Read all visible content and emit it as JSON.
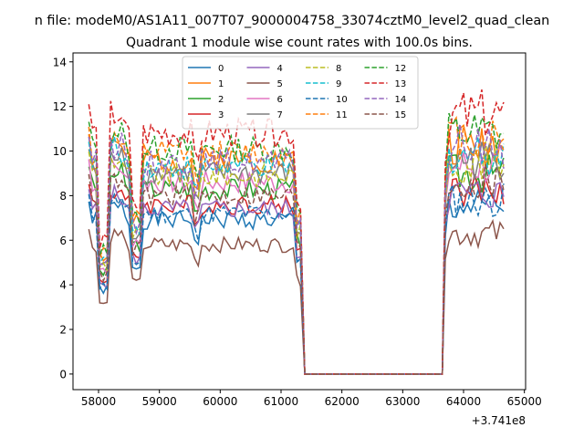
{
  "chart_data": {
    "type": "line",
    "suptitle": "n file: modeM0/AS1A11_007T07_9000004758_33074cztM0_level2_quad_clean",
    "title": "Quadrant 1 module wise count rates with 100.0s bins.",
    "xlabel": "",
    "ylabel": "",
    "x_offset_label": "+3.741e8",
    "xlim": [
      57580,
      65020
    ],
    "ylim": [
      -0.7,
      14.4
    ],
    "x_ticks": [
      58000,
      59000,
      60000,
      61000,
      62000,
      63000,
      64000,
      65000
    ],
    "x_tick_labels": [
      "58000",
      "59000",
      "60000",
      "61000",
      "62000",
      "63000",
      "64000",
      "65000"
    ],
    "y_ticks": [
      0,
      2,
      4,
      6,
      8,
      10,
      12,
      14
    ],
    "y_tick_labels": [
      "0",
      "2",
      "4",
      "6",
      "8",
      "10",
      "12",
      "14"
    ],
    "grid": false,
    "legend_placement": "top-center",
    "legend_columns": 4,
    "segments": [
      {
        "x_start": 57840,
        "x_end": 61320,
        "step": 60
      },
      {
        "x_start": 61390,
        "x_end": 63650,
        "zero": true
      },
      {
        "x_start": 63700,
        "x_end": 64680,
        "step": 60
      }
    ],
    "series": [
      {
        "name": "0",
        "color": "#1f77b4",
        "dash": false,
        "level_a": 6.9,
        "level_b": 7.5,
        "seed": 1
      },
      {
        "name": "1",
        "color": "#ff7f0e",
        "dash": false,
        "level_a": 9.6,
        "level_b": 10.3,
        "seed": 2
      },
      {
        "name": "2",
        "color": "#2ca02c",
        "dash": false,
        "level_a": 8.3,
        "level_b": 9.0,
        "seed": 3
      },
      {
        "name": "3",
        "color": "#d62728",
        "dash": false,
        "level_a": 7.6,
        "level_b": 8.2,
        "seed": 4
      },
      {
        "name": "4",
        "color": "#9467bd",
        "dash": false,
        "level_a": 7.4,
        "level_b": 8.1,
        "seed": 5
      },
      {
        "name": "5",
        "color": "#8c564b",
        "dash": false,
        "level_a": 5.8,
        "level_b": 6.3,
        "seed": 6
      },
      {
        "name": "6",
        "color": "#e377c2",
        "dash": false,
        "level_a": 8.6,
        "level_b": 9.3,
        "seed": 7
      },
      {
        "name": "7",
        "color": "#7f7f7f",
        "dash": false,
        "level_a": 9.0,
        "level_b": 9.6,
        "seed": 8
      },
      {
        "name": "8",
        "color": "#bcbd22",
        "dash": true,
        "level_a": 8.9,
        "level_b": 9.5,
        "seed": 9
      },
      {
        "name": "9",
        "color": "#17becf",
        "dash": true,
        "level_a": 9.3,
        "level_b": 9.9,
        "seed": 10
      },
      {
        "name": "10",
        "color": "#1f77b4",
        "dash": true,
        "level_a": 7.2,
        "level_b": 7.8,
        "seed": 11
      },
      {
        "name": "11",
        "color": "#ff7f0e",
        "dash": true,
        "level_a": 9.9,
        "level_b": 10.6,
        "seed": 12
      },
      {
        "name": "12",
        "color": "#2ca02c",
        "dash": true,
        "level_a": 10.1,
        "level_b": 10.8,
        "seed": 13
      },
      {
        "name": "13",
        "color": "#d62728",
        "dash": true,
        "level_a": 10.8,
        "level_b": 11.6,
        "seed": 14
      },
      {
        "name": "14",
        "color": "#9467bd",
        "dash": true,
        "level_a": 9.5,
        "level_b": 10.2,
        "seed": 15
      },
      {
        "name": "15",
        "color": "#8c564b",
        "dash": true,
        "level_a": 8.0,
        "level_b": 8.6,
        "seed": 16
      }
    ]
  }
}
